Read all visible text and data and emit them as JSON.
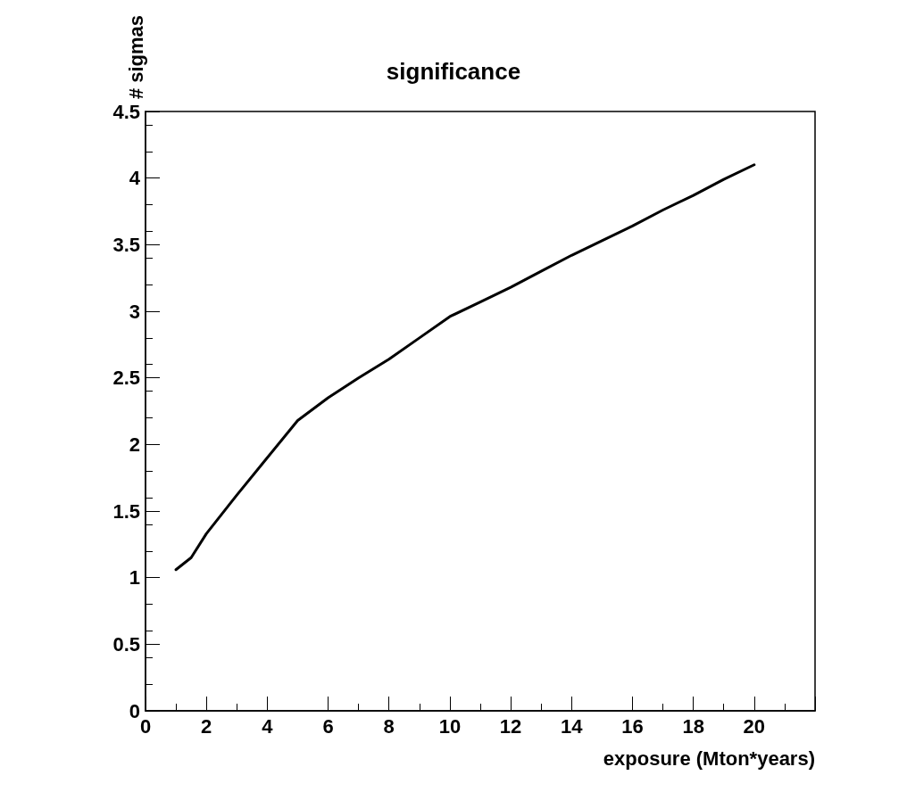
{
  "chart_data": {
    "type": "line",
    "title": "significance",
    "xlabel": "exposure (Mton*years)",
    "ylabel": "# sigmas",
    "x": [
      1,
      1.5,
      2,
      3,
      4,
      5,
      6,
      7,
      8,
      9,
      10,
      11,
      12,
      13,
      14,
      15,
      16,
      17,
      18,
      19,
      20
    ],
    "series": [
      {
        "color": "#000000",
        "values": [
          1.06,
          1.15,
          1.33,
          1.62,
          1.9,
          2.18,
          2.35,
          2.5,
          2.64,
          2.8,
          2.96,
          3.07,
          3.18,
          3.3,
          3.42,
          3.53,
          3.64,
          3.76,
          3.87,
          3.99,
          4.1
        ]
      }
    ],
    "xlim": [
      0,
      22
    ],
    "xticks": [
      0,
      2,
      4,
      6,
      8,
      10,
      12,
      14,
      16,
      18,
      20,
      {
        "value": 22,
        "label": null
      }
    ],
    "ylim": [
      0,
      4.5
    ],
    "yticks": [
      0,
      0.5,
      1,
      1.5,
      2,
      2.5,
      3,
      3.5,
      4,
      4.5
    ],
    "grid": false,
    "marker": "none",
    "line_style": "solid"
  }
}
